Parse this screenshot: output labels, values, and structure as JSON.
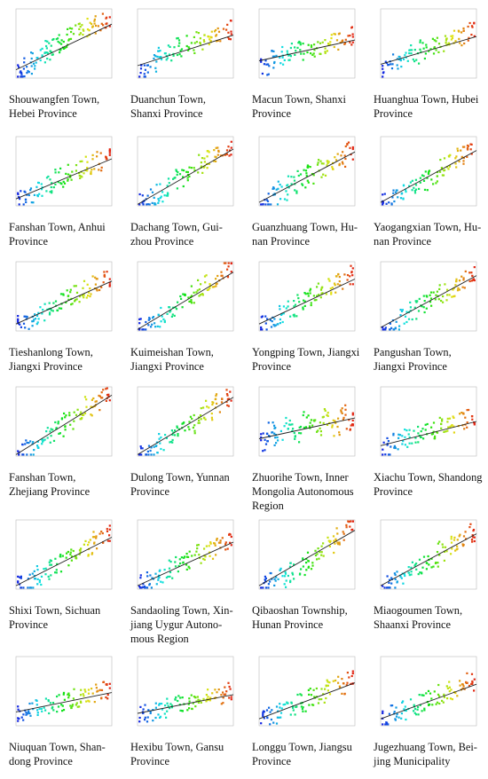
{
  "figure": {
    "panels": [
      {
        "caption": "Shouwangfen Town,\nHebei Province"
      },
      {
        "caption": "Duanchun Town,\nShanxi Province"
      },
      {
        "caption": "Macun Town, Shanxi\nProvince"
      },
      {
        "caption": "Huanghua Town, Hubei\nProvince"
      },
      {
        "caption": "Fanshan Town, Anhui\nProvince"
      },
      {
        "caption": "Dachang Town, Gui-\nzhou Province"
      },
      {
        "caption": "Guanzhuang Town, Hu-\nnan Province"
      },
      {
        "caption": "Yaogangxian Town, Hu-\nnan Province"
      },
      {
        "caption": "Tieshanlong Town,\nJiangxi Province"
      },
      {
        "caption": "Kuimeishan Town,\nJiangxi Province"
      },
      {
        "caption": "Yongping Town, Jiangxi\nProvince"
      },
      {
        "caption": "Pangushan Town,\nJiangxi Province"
      },
      {
        "caption": "Fanshan Town,\nZhejiang Province"
      },
      {
        "caption": "Dulong Town, Yunnan\nProvince"
      },
      {
        "caption": "Zhuorihe Town, Inner\nMongolia Autonomous\nRegion"
      },
      {
        "caption": "Xiachu Town, Shandong\nProvince"
      },
      {
        "caption": "Shixi Town, Sichuan\nProvince"
      },
      {
        "caption": "Sandaoling Town, Xin-\njiang Uygur Autono-\nmous Region"
      },
      {
        "caption": "Qibaoshan Township,\nHunan Province"
      },
      {
        "caption": "Miaogoumen Town,\nShaanxi Province"
      },
      {
        "caption": "Niuquan Town, Shan-\ndong Province"
      },
      {
        "caption": "Hexibu Town, Gansu\nProvince"
      },
      {
        "caption": "Longgu Town, Jiangsu\nProvince"
      },
      {
        "caption": "Jugezhuang Town, Bei-\njing Municipality"
      }
    ]
  },
  "chart_data": [
    {
      "type": "scatter",
      "title": "Shouwangfen Town, Hebei Province",
      "trend": {
        "y0": 0.12,
        "y1": 0.78
      },
      "points": [
        [
          0.05,
          0.08
        ],
        [
          0.12,
          0.15
        ],
        [
          0.2,
          0.25
        ],
        [
          0.28,
          0.33
        ],
        [
          0.35,
          0.4
        ],
        [
          0.42,
          0.47
        ],
        [
          0.5,
          0.55
        ],
        [
          0.58,
          0.6
        ],
        [
          0.66,
          0.65
        ],
        [
          0.75,
          0.72
        ],
        [
          0.85,
          0.78
        ],
        [
          0.95,
          0.86
        ]
      ]
    },
    {
      "type": "scatter",
      "title": "Duanchun Town, Shanxi Province",
      "trend": {
        "y0": 0.18,
        "y1": 0.62
      },
      "points": [
        [
          0.05,
          0.1
        ],
        [
          0.15,
          0.2
        ],
        [
          0.25,
          0.3
        ],
        [
          0.35,
          0.35
        ],
        [
          0.45,
          0.45
        ],
        [
          0.55,
          0.5
        ],
        [
          0.65,
          0.55
        ],
        [
          0.75,
          0.58
        ],
        [
          0.85,
          0.62
        ],
        [
          0.95,
          0.7
        ]
      ]
    },
    {
      "type": "scatter",
      "title": "Macun Town, Shanxi Province",
      "trend": {
        "y0": 0.25,
        "y1": 0.55
      },
      "points": [
        [
          0.05,
          0.18
        ],
        [
          0.15,
          0.28
        ],
        [
          0.25,
          0.32
        ],
        [
          0.35,
          0.38
        ],
        [
          0.45,
          0.4
        ],
        [
          0.55,
          0.45
        ],
        [
          0.65,
          0.48
        ],
        [
          0.75,
          0.5
        ],
        [
          0.85,
          0.55
        ],
        [
          0.95,
          0.6
        ]
      ]
    },
    {
      "type": "scatter",
      "title": "Huanghua Town, Hubei Province",
      "trend": {
        "y0": 0.2,
        "y1": 0.6
      },
      "points": [
        [
          0.05,
          0.12
        ],
        [
          0.15,
          0.22
        ],
        [
          0.25,
          0.3
        ],
        [
          0.35,
          0.35
        ],
        [
          0.45,
          0.42
        ],
        [
          0.55,
          0.45
        ],
        [
          0.65,
          0.5
        ],
        [
          0.75,
          0.55
        ],
        [
          0.85,
          0.6
        ],
        [
          0.95,
          0.68
        ]
      ]
    },
    {
      "type": "scatter",
      "title": "Fanshan Town, Anhui Province",
      "trend": {
        "y0": 0.1,
        "y1": 0.68
      },
      "points": [
        [
          0.05,
          0.08
        ],
        [
          0.15,
          0.16
        ],
        [
          0.25,
          0.24
        ],
        [
          0.35,
          0.32
        ],
        [
          0.45,
          0.4
        ],
        [
          0.55,
          0.46
        ],
        [
          0.65,
          0.52
        ],
        [
          0.75,
          0.58
        ],
        [
          0.85,
          0.65
        ],
        [
          0.95,
          0.7
        ]
      ]
    },
    {
      "type": "scatter",
      "title": "Dachang Town, Guizhou Province",
      "trend": {
        "y0": 0.02,
        "y1": 0.82
      },
      "points": [
        [
          0.05,
          0.04
        ],
        [
          0.15,
          0.1
        ],
        [
          0.25,
          0.18
        ],
        [
          0.35,
          0.28
        ],
        [
          0.45,
          0.38
        ],
        [
          0.55,
          0.5
        ],
        [
          0.65,
          0.6
        ],
        [
          0.75,
          0.68
        ],
        [
          0.85,
          0.76
        ],
        [
          0.95,
          0.85
        ]
      ]
    },
    {
      "type": "scatter",
      "title": "Guanzhuang Town, Hunan Province",
      "trend": {
        "y0": 0.05,
        "y1": 0.78
      },
      "points": [
        [
          0.05,
          0.06
        ],
        [
          0.15,
          0.14
        ],
        [
          0.25,
          0.22
        ],
        [
          0.35,
          0.3
        ],
        [
          0.45,
          0.38
        ],
        [
          0.55,
          0.46
        ],
        [
          0.65,
          0.55
        ],
        [
          0.75,
          0.62
        ],
        [
          0.85,
          0.7
        ],
        [
          0.95,
          0.8
        ]
      ]
    },
    {
      "type": "scatter",
      "title": "Yaogangxian Town, Hunan Province",
      "trend": {
        "y0": 0.05,
        "y1": 0.8
      },
      "points": [
        [
          0.05,
          0.05
        ],
        [
          0.15,
          0.12
        ],
        [
          0.25,
          0.2
        ],
        [
          0.35,
          0.28
        ],
        [
          0.45,
          0.36
        ],
        [
          0.55,
          0.45
        ],
        [
          0.65,
          0.55
        ],
        [
          0.75,
          0.65
        ],
        [
          0.85,
          0.72
        ],
        [
          0.95,
          0.82
        ]
      ]
    },
    {
      "type": "scatter",
      "title": "Tieshanlong Town, Jiangxi Province",
      "trend": {
        "y0": 0.1,
        "y1": 0.72
      },
      "points": [
        [
          0.05,
          0.08
        ],
        [
          0.15,
          0.16
        ],
        [
          0.25,
          0.24
        ],
        [
          0.35,
          0.32
        ],
        [
          0.45,
          0.4
        ],
        [
          0.55,
          0.48
        ],
        [
          0.65,
          0.55
        ],
        [
          0.75,
          0.62
        ],
        [
          0.85,
          0.68
        ],
        [
          0.95,
          0.76
        ]
      ]
    },
    {
      "type": "scatter",
      "title": "Kuimeishan Town, Jiangxi Province",
      "trend": {
        "y0": 0.02,
        "y1": 0.85
      },
      "points": [
        [
          0.05,
          0.04
        ],
        [
          0.15,
          0.1
        ],
        [
          0.25,
          0.2
        ],
        [
          0.35,
          0.3
        ],
        [
          0.45,
          0.4
        ],
        [
          0.55,
          0.52
        ],
        [
          0.65,
          0.62
        ],
        [
          0.75,
          0.7
        ],
        [
          0.85,
          0.78
        ],
        [
          0.95,
          0.88
        ]
      ]
    },
    {
      "type": "scatter",
      "title": "Yongping Town, Jiangxi Province",
      "trend": {
        "y0": 0.1,
        "y1": 0.75
      },
      "points": [
        [
          0.05,
          0.08
        ],
        [
          0.15,
          0.16
        ],
        [
          0.25,
          0.25
        ],
        [
          0.35,
          0.34
        ],
        [
          0.45,
          0.42
        ],
        [
          0.55,
          0.5
        ],
        [
          0.65,
          0.58
        ],
        [
          0.75,
          0.65
        ],
        [
          0.85,
          0.72
        ],
        [
          0.95,
          0.8
        ]
      ]
    },
    {
      "type": "scatter",
      "title": "Pangushan Town, Jiangxi Province",
      "trend": {
        "y0": 0.05,
        "y1": 0.8
      },
      "points": [
        [
          0.05,
          0.06
        ],
        [
          0.15,
          0.12
        ],
        [
          0.25,
          0.2
        ],
        [
          0.35,
          0.3
        ],
        [
          0.45,
          0.38
        ],
        [
          0.55,
          0.46
        ],
        [
          0.65,
          0.55
        ],
        [
          0.75,
          0.63
        ],
        [
          0.85,
          0.72
        ],
        [
          0.95,
          0.82
        ]
      ]
    },
    {
      "type": "scatter",
      "title": "Fanshan Town, Zhejiang Province",
      "trend": {
        "y0": 0.02,
        "y1": 0.88
      },
      "points": [
        [
          0.05,
          0.04
        ],
        [
          0.15,
          0.1
        ],
        [
          0.25,
          0.18
        ],
        [
          0.35,
          0.3
        ],
        [
          0.45,
          0.42
        ],
        [
          0.55,
          0.52
        ],
        [
          0.65,
          0.62
        ],
        [
          0.75,
          0.72
        ],
        [
          0.85,
          0.8
        ],
        [
          0.95,
          0.9
        ]
      ]
    },
    {
      "type": "scatter",
      "title": "Dulong Town, Yunnan Province",
      "trend": {
        "y0": 0.02,
        "y1": 0.85
      },
      "points": [
        [
          0.05,
          0.04
        ],
        [
          0.15,
          0.1
        ],
        [
          0.25,
          0.18
        ],
        [
          0.35,
          0.26
        ],
        [
          0.45,
          0.36
        ],
        [
          0.55,
          0.46
        ],
        [
          0.65,
          0.56
        ],
        [
          0.75,
          0.66
        ],
        [
          0.85,
          0.76
        ],
        [
          0.95,
          0.86
        ]
      ]
    },
    {
      "type": "scatter",
      "title": "Zhuorihe Town, Inner Mongolia Autonomous Region",
      "trend": {
        "y0": 0.25,
        "y1": 0.55
      },
      "points": [
        [
          0.05,
          0.2
        ],
        [
          0.12,
          0.35
        ],
        [
          0.2,
          0.28
        ],
        [
          0.3,
          0.45
        ],
        [
          0.4,
          0.3
        ],
        [
          0.5,
          0.5
        ],
        [
          0.6,
          0.38
        ],
        [
          0.7,
          0.55
        ],
        [
          0.8,
          0.42
        ],
        [
          0.9,
          0.6
        ],
        [
          0.95,
          0.5
        ]
      ]
    },
    {
      "type": "scatter",
      "title": "Xiachu Town, Shandong Province",
      "trend": {
        "y0": 0.15,
        "y1": 0.5
      },
      "points": [
        [
          0.05,
          0.12
        ],
        [
          0.15,
          0.2
        ],
        [
          0.25,
          0.26
        ],
        [
          0.35,
          0.3
        ],
        [
          0.45,
          0.34
        ],
        [
          0.55,
          0.38
        ],
        [
          0.65,
          0.42
        ],
        [
          0.75,
          0.45
        ],
        [
          0.85,
          0.5
        ],
        [
          0.95,
          0.55
        ]
      ]
    },
    {
      "type": "scatter",
      "title": "Shixi Town, Sichuan Province",
      "trend": {
        "y0": 0.05,
        "y1": 0.75
      },
      "points": [
        [
          0.05,
          0.06
        ],
        [
          0.15,
          0.12
        ],
        [
          0.25,
          0.2
        ],
        [
          0.35,
          0.28
        ],
        [
          0.45,
          0.36
        ],
        [
          0.55,
          0.44
        ],
        [
          0.65,
          0.52
        ],
        [
          0.75,
          0.6
        ],
        [
          0.85,
          0.7
        ],
        [
          0.95,
          0.78
        ]
      ]
    },
    {
      "type": "scatter",
      "title": "Sandaoling Town, Xinjiang Uygur Autonomous Region",
      "trend": {
        "y0": 0.05,
        "y1": 0.68
      },
      "points": [
        [
          0.05,
          0.06
        ],
        [
          0.15,
          0.12
        ],
        [
          0.25,
          0.2
        ],
        [
          0.35,
          0.28
        ],
        [
          0.45,
          0.35
        ],
        [
          0.55,
          0.42
        ],
        [
          0.65,
          0.5
        ],
        [
          0.75,
          0.56
        ],
        [
          0.85,
          0.62
        ],
        [
          0.95,
          0.7
        ]
      ]
    },
    {
      "type": "scatter",
      "title": "Qibaoshan Township, Hunan Province",
      "trend": {
        "y0": 0.05,
        "y1": 0.85
      },
      "points": [
        [
          0.05,
          0.05
        ],
        [
          0.15,
          0.1
        ],
        [
          0.25,
          0.16
        ],
        [
          0.35,
          0.24
        ],
        [
          0.45,
          0.32
        ],
        [
          0.55,
          0.42
        ],
        [
          0.65,
          0.55
        ],
        [
          0.75,
          0.65
        ],
        [
          0.85,
          0.75
        ],
        [
          0.95,
          0.88
        ]
      ]
    },
    {
      "type": "scatter",
      "title": "Miaogoumen Town, Shaanxi Province",
      "trend": {
        "y0": 0.05,
        "y1": 0.8
      },
      "points": [
        [
          0.05,
          0.06
        ],
        [
          0.15,
          0.12
        ],
        [
          0.25,
          0.2
        ],
        [
          0.35,
          0.28
        ],
        [
          0.45,
          0.36
        ],
        [
          0.55,
          0.45
        ],
        [
          0.65,
          0.55
        ],
        [
          0.75,
          0.64
        ],
        [
          0.85,
          0.72
        ],
        [
          0.95,
          0.82
        ]
      ]
    },
    {
      "type": "scatter",
      "title": "Niuquan Town, Shandong Province",
      "trend": {
        "y0": 0.2,
        "y1": 0.48
      },
      "points": [
        [
          0.05,
          0.18
        ],
        [
          0.15,
          0.24
        ],
        [
          0.25,
          0.28
        ],
        [
          0.35,
          0.3
        ],
        [
          0.45,
          0.34
        ],
        [
          0.55,
          0.38
        ],
        [
          0.65,
          0.4
        ],
        [
          0.75,
          0.44
        ],
        [
          0.85,
          0.46
        ],
        [
          0.95,
          0.5
        ]
      ]
    },
    {
      "type": "scatter",
      "title": "Hexibu Town, Gansu Province",
      "trend": {
        "y0": 0.18,
        "y1": 0.45
      },
      "points": [
        [
          0.05,
          0.16
        ],
        [
          0.15,
          0.2
        ],
        [
          0.25,
          0.24
        ],
        [
          0.35,
          0.28
        ],
        [
          0.45,
          0.3
        ],
        [
          0.55,
          0.34
        ],
        [
          0.65,
          0.38
        ],
        [
          0.75,
          0.4
        ],
        [
          0.85,
          0.44
        ],
        [
          0.95,
          0.48
        ]
      ]
    },
    {
      "type": "scatter",
      "title": "Longgu Town, Jiangsu Province",
      "trend": {
        "y0": 0.1,
        "y1": 0.62
      },
      "points": [
        [
          0.05,
          0.1
        ],
        [
          0.15,
          0.16
        ],
        [
          0.25,
          0.22
        ],
        [
          0.35,
          0.28
        ],
        [
          0.45,
          0.34
        ],
        [
          0.55,
          0.4
        ],
        [
          0.65,
          0.46
        ],
        [
          0.75,
          0.52
        ],
        [
          0.85,
          0.58
        ],
        [
          0.95,
          0.65
        ]
      ]
    },
    {
      "type": "scatter",
      "title": "Jugezhuang Town, Beijing Municipality",
      "trend": {
        "y0": 0.1,
        "y1": 0.6
      },
      "points": [
        [
          0.05,
          0.1
        ],
        [
          0.15,
          0.16
        ],
        [
          0.25,
          0.22
        ],
        [
          0.35,
          0.28
        ],
        [
          0.45,
          0.34
        ],
        [
          0.55,
          0.4
        ],
        [
          0.65,
          0.45
        ],
        [
          0.75,
          0.5
        ],
        [
          0.85,
          0.56
        ],
        [
          0.95,
          0.62
        ]
      ]
    }
  ]
}
